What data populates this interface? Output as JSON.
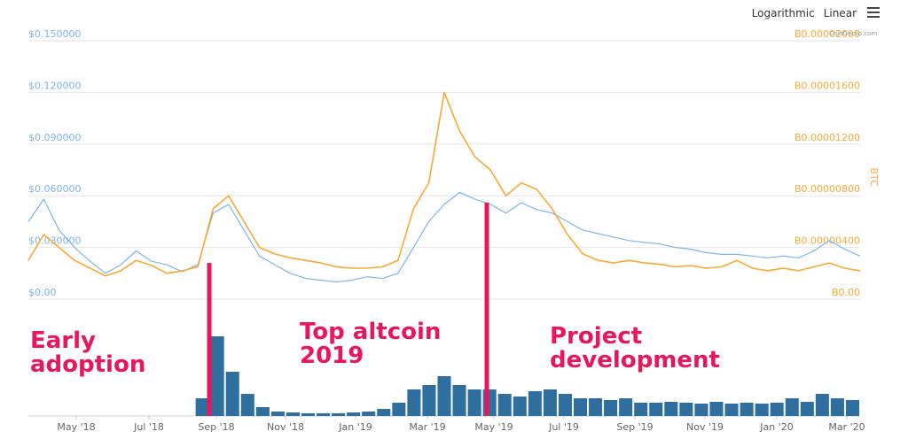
{
  "toolbar": {
    "logarithmic": "Logarithmic",
    "linear": "Linear"
  },
  "credit": "CoinGecko.com",
  "annotations": [
    {
      "id": "a1",
      "line1": "Early",
      "line2": "adoption"
    },
    {
      "id": "a2",
      "line1": "Top altcoin",
      "line2": "2019"
    },
    {
      "id": "a3",
      "line1": "Project",
      "line2": "development"
    }
  ],
  "colors": {
    "usd": "#7cb5ec",
    "btc": "#f7a935",
    "volume": "#2f6f9f",
    "marker": "#e8175d",
    "grid": "#e6e6e6"
  },
  "chart_data": {
    "type": "line",
    "x_labels": [
      "May '18",
      "Jul '18",
      "Sep '18",
      "Nov '18",
      "Jan '19",
      "Mar '19",
      "May '19",
      "Jul '19",
      "Sep '19",
      "Nov '19",
      "Jan '20",
      "Mar '20"
    ],
    "y_left": {
      "ticks": [
        "$0.00",
        "$0.030000",
        "$0.060000",
        "$0.090000",
        "$0.120000",
        "$0.150000"
      ],
      "min": 0,
      "max": 0.15
    },
    "y_right": {
      "label": "BTC",
      "ticks": [
        "B0.00",
        "B0.00000400",
        "B0.00000800",
        "B0.00001200",
        "B0.00001600",
        "B0.00002000"
      ],
      "min": 0,
      "max": 2e-05
    },
    "series": [
      {
        "name": "USD",
        "axis": "left",
        "values": [
          0.045,
          0.058,
          0.04,
          0.03,
          0.022,
          0.015,
          0.02,
          0.028,
          0.022,
          0.02,
          0.016,
          0.02,
          0.05,
          0.055,
          0.04,
          0.025,
          0.02,
          0.015,
          0.012,
          0.011,
          0.01,
          0.011,
          0.013,
          0.012,
          0.015,
          0.03,
          0.045,
          0.055,
          0.062,
          0.058,
          0.055,
          0.05,
          0.056,
          0.052,
          0.05,
          0.045,
          0.04,
          0.038,
          0.036,
          0.034,
          0.033,
          0.032,
          0.03,
          0.029,
          0.027,
          0.026,
          0.026,
          0.025,
          0.024,
          0.025,
          0.024,
          0.028,
          0.034,
          0.029,
          0.025
        ]
      },
      {
        "name": "BTC",
        "axis": "right",
        "values": [
          3e-06,
          5e-06,
          4e-06,
          3e-06,
          2.4e-06,
          1.8e-06,
          2.2e-06,
          3e-06,
          2.6e-06,
          2e-06,
          2.2e-06,
          2.5e-06,
          7e-06,
          8e-06,
          6e-06,
          4e-06,
          3.5e-06,
          3.2e-06,
          3e-06,
          2.8e-06,
          2.5e-06,
          2.4e-06,
          2.4e-06,
          2.5e-06,
          3e-06,
          7e-06,
          9e-06,
          1.6e-05,
          1.3e-05,
          1.1e-05,
          1e-05,
          8e-06,
          9e-06,
          8.5e-06,
          7e-06,
          5e-06,
          3.5e-06,
          3e-06,
          2.8e-06,
          3e-06,
          2.8e-06,
          2.7e-06,
          2.5e-06,
          2.6e-06,
          2.4e-06,
          2.5e-06,
          3e-06,
          2.4e-06,
          2.2e-06,
          2.4e-06,
          2.2e-06,
          2.5e-06,
          2.8e-06,
          2.4e-06,
          2.2e-06
        ]
      }
    ],
    "volume": [
      0,
      0,
      0,
      0,
      0,
      0,
      0,
      0,
      0,
      0,
      0,
      0.2,
      0.9,
      0.5,
      0.25,
      0.1,
      0.05,
      0.04,
      0.03,
      0.03,
      0.03,
      0.04,
      0.05,
      0.08,
      0.15,
      0.3,
      0.35,
      0.45,
      0.35,
      0.3,
      0.3,
      0.25,
      0.22,
      0.28,
      0.3,
      0.25,
      0.2,
      0.2,
      0.18,
      0.2,
      0.15,
      0.15,
      0.16,
      0.15,
      0.14,
      0.16,
      0.14,
      0.15,
      0.14,
      0.15,
      0.2,
      0.16,
      0.25,
      0.2,
      0.18
    ],
    "markers": [
      {
        "date_label": "Sep '18",
        "usd": 0.021
      },
      {
        "date_label": "May '19",
        "usd": 0.056
      }
    ]
  }
}
